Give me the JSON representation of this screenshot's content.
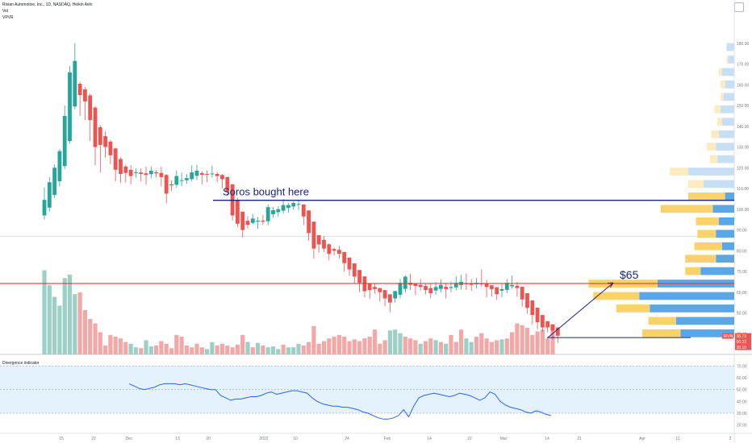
{
  "header": {
    "symbol_line": "Rivian Automotive, Inc., 1D, NASDAQ, Heikin Ashi",
    "vol_label": "Vol",
    "vpvr_label": "VPVR",
    "pane2_title": "Divergence indicator"
  },
  "colors": {
    "up": "#26a69a",
    "down": "#ef5350",
    "vol_up": "#9ccfc6",
    "vol_down": "#f2a8a6",
    "vp_blue": "#5aa7e8",
    "vp_blue_light": "#c7dff5",
    "vp_yellow": "#f9d26b",
    "vp_yellow_light": "#fcebc0",
    "drawing_blue": "#1a237e",
    "red_line": "#e53935",
    "osc_line": "#2962ff",
    "osc_band": "#e3f2fd"
  },
  "annotations": {
    "soros_text": "Soros bought here",
    "target_text": "$65"
  },
  "price_badges": {
    "ticker": "RIVN",
    "last": "38.73",
    "countdown": "06:23",
    "other": "38.10"
  },
  "chart_data": {
    "type": "candlestick",
    "chart_style": "Heikin Ashi",
    "price_axis_ticks": [
      180,
      170,
      160,
      150,
      140,
      130,
      120,
      110,
      100,
      90,
      80,
      70,
      60,
      50,
      40
    ],
    "price_axis_labels": [
      "180.00",
      "170.00",
      "160.00",
      "150.00",
      "140.00",
      "130.00",
      "120.00",
      "110.00",
      "100.00",
      "90.00",
      "80.00",
      "70.00",
      "60.00",
      "50.00",
      "40.00"
    ],
    "ylim": [
      30,
      190
    ],
    "time_axis_labels": [
      "15",
      "22",
      "Dec",
      "13",
      "20",
      "2022",
      "10",
      "24",
      "Feb",
      "14",
      "22",
      "Mar",
      "14",
      "21",
      "Apr",
      "11",
      "2"
    ],
    "candles": [
      [
        97.0,
        104.5,
        110.5,
        95.0
      ],
      [
        100.8,
        113.0,
        115.5,
        98.9
      ],
      [
        106.9,
        120.0,
        121.5,
        105.5
      ],
      [
        113.5,
        128.0,
        129.0,
        111.0
      ],
      [
        120.8,
        145.0,
        150.0,
        119.3
      ],
      [
        132.9,
        166.0,
        169.0,
        131.5
      ],
      [
        149.5,
        171.5,
        180.0,
        148.2
      ],
      [
        160.5,
        155.0,
        161.5,
        145.0
      ],
      [
        157.8,
        152.0,
        158.9,
        143.0
      ],
      [
        154.9,
        143.0,
        155.7,
        132.9
      ],
      [
        149.0,
        130.0,
        149.6,
        121.2
      ],
      [
        139.5,
        131.0,
        140.5,
        117.7
      ],
      [
        135.2,
        130.0,
        137.5,
        124.9
      ],
      [
        132.6,
        126.0,
        133.4,
        121.7
      ],
      [
        129.3,
        119.0,
        129.6,
        113.5
      ],
      [
        124.2,
        117.0,
        125.0,
        112.6
      ],
      [
        120.6,
        117.5,
        121.4,
        112.8
      ],
      [
        119.0,
        116.0,
        121.3,
        112.0
      ],
      [
        117.5,
        117.8,
        119.6,
        115.2
      ],
      [
        117.7,
        117.0,
        119.7,
        113.4
      ],
      [
        117.3,
        116.5,
        120.5,
        111.8
      ],
      [
        116.9,
        118.6,
        120.6,
        114.9
      ],
      [
        117.8,
        117.3,
        118.8,
        115.3
      ],
      [
        117.5,
        115.5,
        120.5,
        111.0
      ],
      [
        116.5,
        107.5,
        117.0,
        102.8
      ],
      [
        112.0,
        111.5,
        114.0,
        108.9
      ],
      [
        111.8,
        116.0,
        118.7,
        110.3
      ],
      [
        113.9,
        114.0,
        117.6,
        111.1
      ],
      [
        114.0,
        115.0,
        116.9,
        112.2
      ],
      [
        114.5,
        117.8,
        121.2,
        113.5
      ],
      [
        116.1,
        118.6,
        121.4,
        114.1
      ],
      [
        117.4,
        116.6,
        118.3,
        112.0
      ],
      [
        117.0,
        116.8,
        118.7,
        113.1
      ],
      [
        116.9,
        117.2,
        121.0,
        115.3
      ],
      [
        117.0,
        116.0,
        117.9,
        113.1
      ],
      [
        116.5,
        114.5,
        117.0,
        110.1
      ],
      [
        115.5,
        108.5,
        115.8,
        106.5
      ],
      [
        112.0,
        97.0,
        112.0,
        94.5
      ],
      [
        104.5,
        93.0,
        105.6,
        91.4
      ],
      [
        98.8,
        90.0,
        98.8,
        86.4
      ],
      [
        94.4,
        92.5,
        96.7,
        90.7
      ],
      [
        93.4,
        95.5,
        97.6,
        92.7
      ],
      [
        94.5,
        94.5,
        96.3,
        90.5
      ],
      [
        94.5,
        94.0,
        97.2,
        92.5
      ],
      [
        94.2,
        101.0,
        102.3,
        92.2
      ],
      [
        97.6,
        99.5,
        101.0,
        95.9
      ],
      [
        98.6,
        100.0,
        101.4,
        96.5
      ],
      [
        99.3,
        102.0,
        104.9,
        97.9
      ],
      [
        100.6,
        102.0,
        103.0,
        98.2
      ],
      [
        101.3,
        103.0,
        103.7,
        99.7
      ],
      [
        102.2,
        102.5,
        104.6,
        99.6
      ],
      [
        102.3,
        96.5,
        102.3,
        92.4
      ],
      [
        99.4,
        88.5,
        99.4,
        84.8
      ],
      [
        94.0,
        81.0,
        94.0,
        76.2
      ],
      [
        87.5,
        83.0,
        87.5,
        79.1
      ],
      [
        85.2,
        81.0,
        87.1,
        79.4
      ],
      [
        83.1,
        78.5,
        83.4,
        75.3
      ],
      [
        80.8,
        80.0,
        81.5,
        77.7
      ],
      [
        80.4,
        78.5,
        82.3,
        76.3
      ],
      [
        79.4,
        74.0,
        79.4,
        70.0
      ],
      [
        76.7,
        71.0,
        76.7,
        67.9
      ],
      [
        73.9,
        67.5,
        73.9,
        64.5
      ],
      [
        70.7,
        64.5,
        70.7,
        60.0
      ],
      [
        67.6,
        60.5,
        67.6,
        57.5
      ],
      [
        64.1,
        61.0,
        64.1,
        56.8
      ],
      [
        62.5,
        61.5,
        64.2,
        59.2
      ],
      [
        62.0,
        60.0,
        62.0,
        55.4
      ],
      [
        61.0,
        57.0,
        61.0,
        53.1
      ],
      [
        59.0,
        55.0,
        59.0,
        50.4
      ],
      [
        57.0,
        60.5,
        60.7,
        55.0
      ],
      [
        58.8,
        64.5,
        66.4,
        57.0
      ],
      [
        61.6,
        67.5,
        68.2,
        59.8
      ],
      [
        64.6,
        63.5,
        68.9,
        61.0
      ],
      [
        64.1,
        63.0,
        64.2,
        58.5
      ],
      [
        63.5,
        62.5,
        66.2,
        60.8
      ],
      [
        63.0,
        61.0,
        63.9,
        59.0
      ],
      [
        62.0,
        59.5,
        64.1,
        57.2
      ],
      [
        60.8,
        62.5,
        65.0,
        58.8
      ],
      [
        61.6,
        63.5,
        66.2,
        59.8
      ],
      [
        62.6,
        61.5,
        64.5,
        57.0
      ],
      [
        62.0,
        62.5,
        65.2,
        59.9
      ],
      [
        62.3,
        64.5,
        67.6,
        60.8
      ],
      [
        63.4,
        65.0,
        68.4,
        61.2
      ],
      [
        64.2,
        64.0,
        69.1,
        61.0
      ],
      [
        64.1,
        63.5,
        66.3,
        60.6
      ],
      [
        63.8,
        64.5,
        66.8,
        61.8
      ],
      [
        64.2,
        64.0,
        71.0,
        62.6
      ],
      [
        64.1,
        62.5,
        65.9,
        57.5
      ],
      [
        63.3,
        61.5,
        63.3,
        57.8
      ],
      [
        62.4,
        59.0,
        62.4,
        56.3
      ],
      [
        60.7,
        61.5,
        64.1,
        57.6
      ],
      [
        61.1,
        64.5,
        66.3,
        59.5
      ],
      [
        62.8,
        63.5,
        68.0,
        61.7
      ],
      [
        63.1,
        62.0,
        65.0,
        57.7
      ],
      [
        62.6,
        56.5,
        62.6,
        53.1
      ],
      [
        59.5,
        52.5,
        59.5,
        49.8
      ],
      [
        56.0,
        49.0,
        56.0,
        44.3
      ],
      [
        52.5,
        45.5,
        52.5,
        42.2
      ],
      [
        49.0,
        43.0,
        49.0,
        40.9
      ],
      [
        46.0,
        43.0,
        46.0,
        40.6
      ],
      [
        44.5,
        41.5,
        44.5,
        37.3
      ],
      [
        43.0,
        39.0,
        43.0,
        35.5
      ]
    ],
    "volume": [
      [
        "up",
        0.95
      ],
      [
        "up",
        0.78
      ],
      [
        "up",
        0.65
      ],
      [
        "up",
        0.55
      ],
      [
        "up",
        0.86
      ],
      [
        "up",
        0.9
      ],
      [
        "up",
        0.68
      ],
      [
        "down",
        0.7
      ],
      [
        "down",
        0.5
      ],
      [
        "down",
        0.4
      ],
      [
        "down",
        0.35
      ],
      [
        "down",
        0.25
      ],
      [
        "down",
        0.1
      ],
      [
        "down",
        0.22
      ],
      [
        "down",
        0.2
      ],
      [
        "down",
        0.18
      ],
      [
        "down",
        0.14
      ],
      [
        "up",
        0.12
      ],
      [
        "up",
        0.08
      ],
      [
        "down",
        0.07
      ],
      [
        "up",
        0.16
      ],
      [
        "up",
        0.09
      ],
      [
        "down",
        0.1
      ],
      [
        "down",
        0.15
      ],
      [
        "down",
        0.12
      ],
      [
        "down",
        0.07
      ],
      [
        "down",
        0.22
      ],
      [
        "down",
        0.2
      ],
      [
        "down",
        0.1
      ],
      [
        "down",
        0.08
      ],
      [
        "down",
        0.12
      ],
      [
        "down",
        0.08
      ],
      [
        "up",
        0.06
      ],
      [
        "up",
        0.14
      ],
      [
        "down",
        0.1
      ],
      [
        "down",
        0.12
      ],
      [
        "down",
        0.1
      ],
      [
        "down",
        0.08
      ],
      [
        "down",
        0.11
      ],
      [
        "down",
        0.22
      ],
      [
        "up",
        0.14
      ],
      [
        "down",
        0.08
      ],
      [
        "up",
        0.13
      ],
      [
        "down",
        0.1
      ],
      [
        "up",
        0.08
      ],
      [
        "up",
        0.09
      ],
      [
        "up",
        0.06
      ],
      [
        "down",
        0.11
      ],
      [
        "up",
        0.08
      ],
      [
        "up",
        0.08
      ],
      [
        "up",
        0.12
      ],
      [
        "down",
        0.1
      ],
      [
        "down",
        0.14
      ],
      [
        "down",
        0.32
      ],
      [
        "down",
        0.12
      ],
      [
        "down",
        0.15
      ],
      [
        "down",
        0.18
      ],
      [
        "down",
        0.2
      ],
      [
        "down",
        0.22
      ],
      [
        "down",
        0.2
      ],
      [
        "down",
        0.15
      ],
      [
        "down",
        0.17
      ],
      [
        "down",
        0.15
      ],
      [
        "down",
        0.18
      ],
      [
        "down",
        0.2
      ],
      [
        "down",
        0.28
      ],
      [
        "down",
        0.12
      ],
      [
        "down",
        0.16
      ],
      [
        "up",
        0.27
      ],
      [
        "up",
        0.28
      ],
      [
        "up",
        0.24
      ],
      [
        "down",
        0.2
      ],
      [
        "down",
        0.18
      ],
      [
        "down",
        0.16
      ],
      [
        "up",
        0.12
      ],
      [
        "down",
        0.15
      ],
      [
        "down",
        0.18
      ],
      [
        "up",
        0.16
      ],
      [
        "down",
        0.14
      ],
      [
        "up",
        0.12
      ],
      [
        "down",
        0.22
      ],
      [
        "down",
        0.14
      ],
      [
        "down",
        0.28
      ],
      [
        "up",
        0.18
      ],
      [
        "up",
        0.14
      ],
      [
        "down",
        0.2
      ],
      [
        "down",
        0.24
      ],
      [
        "down",
        0.18
      ],
      [
        "down",
        0.14
      ],
      [
        "down",
        0.16
      ],
      [
        "up",
        0.17
      ],
      [
        "down",
        0.18
      ],
      [
        "down",
        0.25
      ],
      [
        "down",
        0.35
      ],
      [
        "down",
        0.33
      ],
      [
        "down",
        0.3
      ],
      [
        "down",
        0.22
      ],
      [
        "down",
        0.26
      ],
      [
        "down",
        0.28
      ],
      [
        "down",
        0.18
      ],
      [
        "down",
        0.33
      ]
    ],
    "volume_profile": [
      {
        "price": 178,
        "blue": 0.05,
        "yellow": 0.0
      },
      {
        "price": 172,
        "blue": 0.04,
        "yellow": 0.01
      },
      {
        "price": 166,
        "blue": 0.08,
        "yellow": 0.02
      },
      {
        "price": 160,
        "blue": 0.06,
        "yellow": 0.03
      },
      {
        "price": 154,
        "blue": 0.07,
        "yellow": 0.02
      },
      {
        "price": 148,
        "blue": 0.09,
        "yellow": 0.04
      },
      {
        "price": 142,
        "blue": 0.08,
        "yellow": 0.03
      },
      {
        "price": 136,
        "blue": 0.1,
        "yellow": 0.05
      },
      {
        "price": 130,
        "blue": 0.12,
        "yellow": 0.06
      },
      {
        "price": 124,
        "blue": 0.11,
        "yellow": 0.05
      },
      {
        "price": 118,
        "blue": 0.3,
        "yellow": 0.12
      },
      {
        "price": 112,
        "blue": 0.2,
        "yellow": 0.1
      },
      {
        "price": 106,
        "blue": 0.06,
        "yellow": 0.24
      },
      {
        "price": 100,
        "blue": 0.14,
        "yellow": 0.34
      },
      {
        "price": 94,
        "blue": 0.1,
        "yellow": 0.15
      },
      {
        "price": 88,
        "blue": 0.12,
        "yellow": 0.12
      },
      {
        "price": 82,
        "blue": 0.08,
        "yellow": 0.18
      },
      {
        "price": 76,
        "blue": 0.12,
        "yellow": 0.2
      },
      {
        "price": 70,
        "blue": 0.22,
        "yellow": 0.1
      },
      {
        "price": 64,
        "blue": 0.5,
        "yellow": 0.45
      },
      {
        "price": 58,
        "blue": 0.62,
        "yellow": 0.3
      },
      {
        "price": 52,
        "blue": 0.55,
        "yellow": 0.22
      },
      {
        "price": 46,
        "blue": 0.38,
        "yellow": 0.18
      },
      {
        "price": 40,
        "blue": 0.35,
        "yellow": 0.25
      }
    ],
    "divergence_indicator": {
      "title": "Divergence indicator",
      "ticks": [
        70,
        60,
        50,
        40,
        30,
        20
      ],
      "tick_labels": [
        "70.00",
        "60.00",
        "50.00",
        "40.00",
        "30.00",
        "20.00"
      ],
      "ylim": [
        17,
        73
      ],
      "band": [
        30,
        70
      ],
      "start_index": 25,
      "values": [
        55,
        53,
        51,
        50,
        51,
        52,
        54,
        55,
        55,
        55,
        54,
        55,
        54,
        53,
        52,
        51,
        50,
        50,
        45,
        43,
        41,
        42,
        42,
        43,
        44,
        44,
        45,
        47,
        48,
        46,
        47,
        48,
        49,
        49,
        48,
        47,
        43,
        40,
        38,
        37,
        36,
        36,
        35,
        35,
        34,
        33,
        31,
        30,
        28,
        26,
        25,
        25,
        26,
        28,
        33,
        27,
        36,
        43,
        45,
        46,
        47,
        46,
        45,
        44,
        45,
        47,
        46,
        45,
        43,
        41,
        43,
        48,
        46,
        40,
        37,
        35,
        34,
        33,
        31,
        30,
        32,
        31,
        29,
        28
      ]
    }
  }
}
